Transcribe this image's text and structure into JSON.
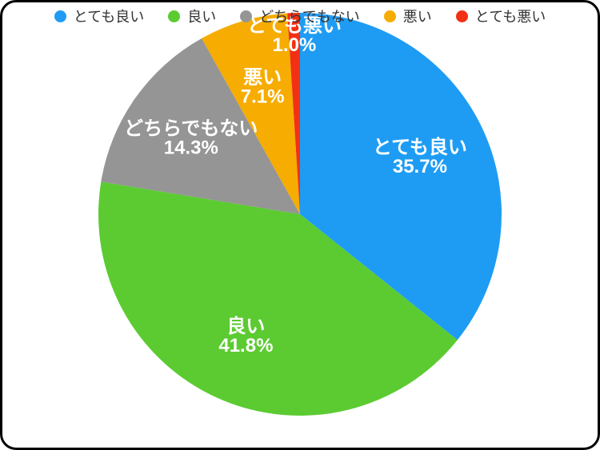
{
  "frame": {
    "background_color": "#FFFFFF",
    "border_color": "#000000"
  },
  "chart_data": {
    "type": "pie",
    "title": "",
    "categories": [
      "とても良い",
      "良い",
      "どちらでもない",
      "悪い",
      "とても悪い"
    ],
    "values": [
      35.7,
      41.8,
      14.3,
      7.1,
      1.0
    ],
    "value_labels": [
      "35.7%",
      "41.8%",
      "14.3%",
      "7.1%",
      "1.0%"
    ],
    "colors": [
      "#1E9CF4",
      "#5BCB31",
      "#959595",
      "#F6AC00",
      "#F23014"
    ],
    "start_angle_deg": -90,
    "direction": "clockwise",
    "slice_label_color": "#FFFFFF",
    "label_radius": [
      0.66,
      0.66,
      0.66,
      0.66,
      0.89
    ],
    "legend_position": "bottom",
    "legend_text_color": "#333333",
    "grid": false
  }
}
